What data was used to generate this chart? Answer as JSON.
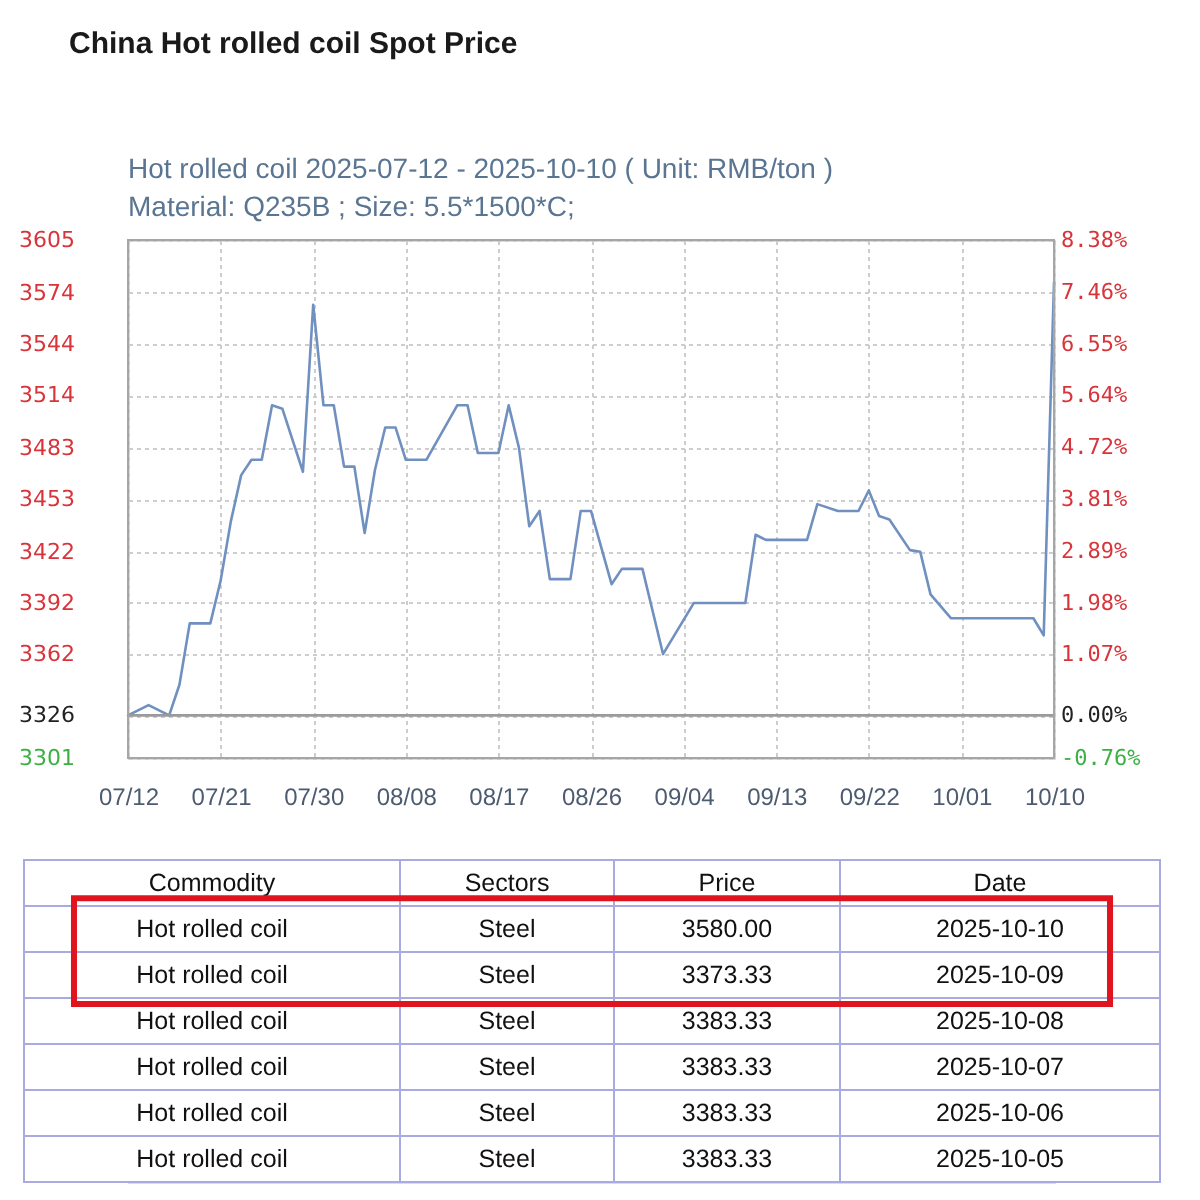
{
  "chart_data": [
    {
      "type": "line",
      "title": "China Hot rolled coil Spot Price",
      "subtitle": "Hot rolled coil 2025-07-12 - 2025-10-10    ( Unit: RMB/ton )\nMaterial: Q235B ; Size: 5.5*1500*C;",
      "x": [
        "2025-07-12",
        "2025-07-14",
        "2025-07-16",
        "2025-07-17",
        "2025-07-18",
        "2025-07-20",
        "2025-07-21",
        "2025-07-22",
        "2025-07-23",
        "2025-07-24",
        "2025-07-25",
        "2025-07-26",
        "2025-07-27",
        "2025-07-29",
        "2025-07-30",
        "2025-07-31",
        "2025-08-01",
        "2025-08-02",
        "2025-08-03",
        "2025-08-04",
        "2025-08-05",
        "2025-08-06",
        "2025-08-07",
        "2025-08-08",
        "2025-08-10",
        "2025-08-13",
        "2025-08-14",
        "2025-08-15",
        "2025-08-17",
        "2025-08-18",
        "2025-08-19",
        "2025-08-20",
        "2025-08-21",
        "2025-08-22",
        "2025-08-24",
        "2025-08-25",
        "2025-08-26",
        "2025-08-28",
        "2025-08-29",
        "2025-08-31",
        "2025-09-02",
        "2025-09-05",
        "2025-09-10",
        "2025-09-11",
        "2025-09-12",
        "2025-09-16",
        "2025-09-17",
        "2025-09-19",
        "2025-09-21",
        "2025-09-22",
        "2025-09-23",
        "2025-09-24",
        "2025-09-26",
        "2025-09-27",
        "2025-09-28",
        "2025-09-30",
        "2025-10-05",
        "2025-10-06",
        "2025-10-07",
        "2025-10-08",
        "2025-10-09",
        "2025-10-10"
      ],
      "series": [
        {
          "color": "#7090c0",
          "values": [
            3326,
            3332,
            3326,
            3344,
            3380,
            3380,
            3405,
            3440,
            3467,
            3476,
            3476,
            3508,
            3506,
            3469,
            3567,
            3508,
            3508,
            3472,
            3472,
            3433,
            3470,
            3495,
            3495,
            3476,
            3476,
            3508,
            3508,
            3480,
            3480,
            3508,
            3483,
            3437,
            3446,
            3406,
            3406,
            3446,
            3446,
            3403,
            3412,
            3412,
            3362,
            3392,
            3392,
            3432,
            3429,
            3429,
            3450,
            3446,
            3446,
            3458,
            3443,
            3441,
            3423,
            3422,
            3397,
            3383,
            3383,
            3383,
            3383,
            3383,
            3373,
            3580
          ]
        }
      ],
      "xlim": [
        "2025-07-12",
        "2025-10-10"
      ],
      "xticks": [
        {
          "value": "2025-07-12",
          "label": "07/12"
        },
        {
          "value": "2025-07-21",
          "label": "07/21"
        },
        {
          "value": "2025-07-30",
          "label": "07/30"
        },
        {
          "value": "2025-08-08",
          "label": "08/08"
        },
        {
          "value": "2025-08-17",
          "label": "08/17"
        },
        {
          "value": "2025-08-26",
          "label": "08/26"
        },
        {
          "value": "2025-09-04",
          "label": "09/04"
        },
        {
          "value": "2025-09-13",
          "label": "09/13"
        },
        {
          "value": "2025-09-22",
          "label": "09/22"
        },
        {
          "value": "2025-10-01",
          "label": "10/01"
        },
        {
          "value": "2025-10-10",
          "label": "10/10"
        }
      ],
      "ylim": [
        3301,
        3605
      ],
      "yticks": [
        3301,
        3326,
        3362,
        3392,
        3422,
        3453,
        3483,
        3514,
        3544,
        3574,
        3605
      ],
      "y2lim": [
        -0.76,
        8.38
      ],
      "y2ticks": [
        {
          "value": -0.76,
          "label": "-0.76%"
        },
        {
          "value": 0,
          "label": "0.00%"
        },
        {
          "value": 1.07,
          "label": "1.07%"
        },
        {
          "value": 1.98,
          "label": "1.98%"
        },
        {
          "value": 2.89,
          "label": "2.89%"
        },
        {
          "value": 3.81,
          "label": "3.81%"
        },
        {
          "value": 4.72,
          "label": "4.72%"
        },
        {
          "value": 5.64,
          "label": "5.64%"
        },
        {
          "value": 6.55,
          "label": "6.55%"
        },
        {
          "value": 7.46,
          "label": "7.46%"
        },
        {
          "value": 8.38,
          "label": "8.38%"
        }
      ],
      "ref_lines": [
        {
          "axis": "y",
          "value": 3326,
          "color": "#9a9a9a"
        }
      ],
      "grid": true,
      "line_style": "solid"
    },
    {
      "type": "other",
      "categories": [
        "Commodity",
        "Sectors",
        "Price",
        "Date"
      ],
      "cell_labels": [
        [
          "Hot rolled coil",
          "Steel",
          "3580.00",
          "2025-10-10"
        ],
        [
          "Hot rolled coil",
          "Steel",
          "3373.33",
          "2025-10-09"
        ],
        [
          "Hot rolled coil",
          "Steel",
          "3383.33",
          "2025-10-08"
        ],
        [
          "Hot rolled coil",
          "Steel",
          "3383.33",
          "2025-10-07"
        ],
        [
          "Hot rolled coil",
          "Steel",
          "3383.33",
          "2025-10-06"
        ],
        [
          "Hot rolled coil",
          "Steel",
          "3383.33",
          "2025-10-05"
        ]
      ]
    }
  ]
}
